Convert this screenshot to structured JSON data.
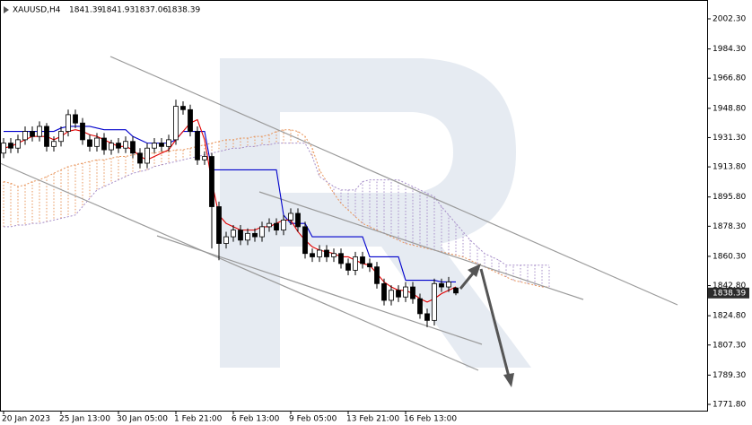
{
  "chart_data": {
    "type": "candlestick",
    "symbol": "XAUUSD,H4",
    "categories": [
      "20 Jan 2023",
      null,
      null,
      null,
      null,
      null,
      null,
      null,
      "25 Jan 13:00",
      null,
      null,
      null,
      null,
      null,
      null,
      null,
      "30 Jan 05:00",
      null,
      null,
      null,
      null,
      null,
      null,
      null,
      "1 Feb 21:00",
      null,
      null,
      null,
      null,
      null,
      null,
      null,
      "6 Feb 13:00",
      null,
      null,
      null,
      null,
      null,
      null,
      null,
      "9 Feb 05:00",
      null,
      null,
      null,
      null,
      null,
      null,
      null,
      "13 Feb 21:00",
      null,
      null,
      null,
      null,
      null,
      null,
      null,
      "16 Feb 13:00",
      null,
      null,
      null,
      null,
      null,
      null,
      null,
      null,
      null,
      null,
      null,
      null,
      null,
      null,
      null,
      null,
      null,
      null,
      null,
      null
    ],
    "open": [
      1922,
      1928,
      1925,
      1930,
      1935,
      1932,
      1938,
      1926,
      1929,
      1935,
      1945,
      1940,
      1930,
      1926,
      1931,
      1924,
      1928,
      1925,
      1929,
      1922,
      1916,
      1925,
      1928,
      1926,
      1930,
      1950,
      1948,
      1935,
      1918,
      1920,
      1890,
      1868,
      1872,
      1876,
      1870,
      1874,
      1872,
      1878,
      1880,
      1876,
      1882,
      1886,
      1878,
      1862,
      1860,
      1864,
      1860,
      1862,
      1856,
      1852,
      1860,
      1856,
      1854,
      1844,
      1834,
      1840,
      1836,
      1842,
      1835,
      1826,
      1822,
      1844,
      1842,
      1841.39,
      null,
      null,
      null,
      null,
      null,
      null,
      null,
      null,
      null,
      null,
      null,
      null,
      null
    ],
    "high": [
      1931,
      1931,
      1933,
      1938,
      1938,
      1941,
      1940,
      1932,
      1938,
      1948,
      1948,
      1943,
      1933,
      1934,
      1934,
      1930,
      1931,
      1932,
      1932,
      1925,
      1928,
      1931,
      1931,
      1933,
      1954,
      1953,
      1951,
      1938,
      1923,
      1922,
      1893,
      1875,
      1879,
      1879,
      1877,
      1877,
      1881,
      1883,
      1883,
      1885,
      1889,
      1889,
      1881,
      1865,
      1867,
      1867,
      1865,
      1865,
      1859,
      1863,
      1863,
      1859,
      1857,
      1847,
      1843,
      1843,
      1845,
      1845,
      1838,
      1829,
      1847,
      1847,
      1848,
      1841.93,
      null,
      null,
      null,
      null,
      null,
      null,
      null,
      null,
      null,
      null,
      null,
      null,
      null
    ],
    "low": [
      1919,
      1922,
      1922,
      1927,
      1929,
      1929,
      1923,
      1923,
      1926,
      1932,
      1937,
      1927,
      1923,
      1923,
      1921,
      1921,
      1922,
      1922,
      1919,
      1913,
      1913,
      1922,
      1923,
      1923,
      1927,
      1945,
      1932,
      1915,
      1915,
      1865,
      1858,
      1865,
      1869,
      1867,
      1867,
      1869,
      1869,
      1875,
      1873,
      1873,
      1879,
      1875,
      1859,
      1857,
      1857,
      1857,
      1857,
      1853,
      1849,
      1849,
      1853,
      1851,
      1841,
      1831,
      1831,
      1833,
      1833,
      1832,
      1823,
      1818,
      1819,
      1839,
      1839,
      1837.06,
      null,
      null,
      null,
      null,
      null,
      null,
      null,
      null,
      null,
      null,
      null,
      null,
      null
    ],
    "close": [
      1928,
      1925,
      1930,
      1935,
      1932,
      1938,
      1926,
      1929,
      1935,
      1945,
      1940,
      1930,
      1926,
      1931,
      1924,
      1928,
      1925,
      1929,
      1922,
      1916,
      1925,
      1928,
      1926,
      1930,
      1950,
      1948,
      1935,
      1918,
      1920,
      1890,
      1868,
      1872,
      1876,
      1870,
      1874,
      1872,
      1878,
      1880,
      1876,
      1882,
      1886,
      1878,
      1862,
      1860,
      1864,
      1860,
      1862,
      1856,
      1852,
      1860,
      1856,
      1854,
      1844,
      1834,
      1840,
      1836,
      1842,
      1835,
      1826,
      1822,
      1844,
      1842,
      1845,
      1838.39,
      null,
      null,
      null,
      null,
      null,
      null,
      null,
      null,
      null,
      null,
      null,
      null,
      null
    ],
    "up_color": "#ffffff",
    "down_color": "#000000",
    "wick_color": "#000000",
    "lines": [
      {
        "color": "#0000cc",
        "values": [
          1935,
          1935,
          1935,
          1935,
          1935,
          1935,
          1935,
          1935,
          1937,
          1938,
          1938,
          1938,
          1938,
          1937,
          1936,
          1936,
          1936,
          1936,
          1932,
          1930,
          1928,
          1928,
          1928,
          1928,
          1930,
          1935,
          1935,
          1935,
          1935,
          1912,
          1912,
          1912,
          1912,
          1912,
          1912,
          1912,
          1912,
          1912,
          1912,
          1885,
          1880,
          1880,
          1880,
          1872,
          1872,
          1872,
          1872,
          1872,
          1872,
          1872,
          1872,
          1860,
          1860,
          1860,
          1860,
          1860,
          1846,
          1846,
          1846,
          1846,
          1846,
          1845,
          1845,
          1845,
          null,
          null,
          null,
          null,
          null,
          null,
          null,
          null,
          null,
          null,
          null,
          null,
          null
        ]
      },
      {
        "color": "#e00000",
        "values": [
          1925,
          1926,
          1928,
          1930,
          1932,
          1932,
          1932,
          1930,
          1932,
          1935,
          1936,
          1935,
          1933,
          1932,
          1930,
          1928,
          1926,
          1926,
          1924,
          1920,
          1918,
          1920,
          1922,
          1924,
          1930,
          1935,
          1940,
          1942,
          1930,
          1905,
          1885,
          1880,
          1878,
          1876,
          1876,
          1876,
          1878,
          1878,
          1880,
          1882,
          1882,
          1875,
          1870,
          1866,
          1864,
          1863,
          1862,
          1860,
          1860,
          1858,
          1856,
          1855,
          1850,
          1845,
          1842,
          1840,
          1840,
          1838,
          1835,
          1833,
          1835,
          1838,
          1840,
          1842,
          null,
          null,
          null,
          null,
          null,
          null,
          null,
          null,
          null,
          null,
          null,
          null,
          null
        ]
      }
    ],
    "cloud": {
      "up_color": "#e8945a",
      "down_color": "#a58cc8",
      "span_a": [
        1905,
        1904,
        1902,
        1903,
        1905,
        1906,
        1908,
        1910,
        1912,
        1914,
        1915,
        1916,
        1917,
        1918,
        1918,
        1919,
        1920,
        1920,
        1921,
        1921,
        1922,
        1922,
        1923,
        1923,
        1924,
        1924,
        1925,
        1926,
        1927,
        1928,
        1929,
        1930,
        1930,
        1931,
        1931,
        1932,
        1932,
        1933,
        1935,
        1936,
        1936,
        1935,
        1932,
        1925,
        1912,
        1905,
        1898,
        1892,
        1888,
        1884,
        1880,
        1878,
        1876,
        1874,
        1872,
        1870,
        1868,
        1867,
        1866,
        1865,
        1864,
        1863,
        1862,
        1861,
        1860,
        1858,
        1856,
        1854,
        1852,
        1850,
        1848,
        1846,
        1845,
        1844,
        1843,
        1842,
        1842
      ],
      "span_b": [
        1878,
        1878,
        1879,
        1879,
        1880,
        1880,
        1881,
        1882,
        1883,
        1884,
        1885,
        1890,
        1895,
        1900,
        1902,
        1904,
        1906,
        1908,
        1910,
        1911,
        1912,
        1914,
        1915,
        1916,
        1917,
        1918,
        1919,
        1920,
        1921,
        1922,
        1923,
        1924,
        1925,
        1925,
        1926,
        1926,
        1927,
        1927,
        1928,
        1928,
        1928,
        1928,
        1928,
        1920,
        1908,
        1905,
        1902,
        1900,
        1900,
        1900,
        1905,
        1906,
        1906,
        1906,
        1906,
        1906,
        1904,
        1902,
        1900,
        1898,
        1896,
        1890,
        1885,
        1880,
        1875,
        1870,
        1866,
        1862,
        1860,
        1858,
        1855,
        1855,
        1855,
        1855,
        1855,
        1855,
        1855
      ]
    },
    "ylim": [
      1768.05,
      2013.56
    ],
    "yticks": [
      {
        "value": 2002.3,
        "label": "2002.30"
      },
      {
        "value": 1984.3,
        "label": "1984.30"
      },
      {
        "value": 1966.8,
        "label": "1966.80"
      },
      {
        "value": 1948.8,
        "label": "1948.80"
      },
      {
        "value": 1931.3,
        "label": "1931.30"
      },
      {
        "value": 1913.8,
        "label": "1913.80"
      },
      {
        "value": 1895.8,
        "label": "1895.80"
      },
      {
        "value": 1878.3,
        "label": "1878.30"
      },
      {
        "value": 1860.3,
        "label": "1860.30"
      },
      {
        "value": 1842.8,
        "label": "1842.80"
      },
      {
        "value": 1824.8,
        "label": "1824.80"
      },
      {
        "value": 1807.3,
        "label": "1807.30"
      },
      {
        "value": 1789.3,
        "label": "1789.30"
      },
      {
        "value": 1771.8,
        "label": "1771.80"
      }
    ],
    "price_label_color": "#2b2b2b"
  }
}
